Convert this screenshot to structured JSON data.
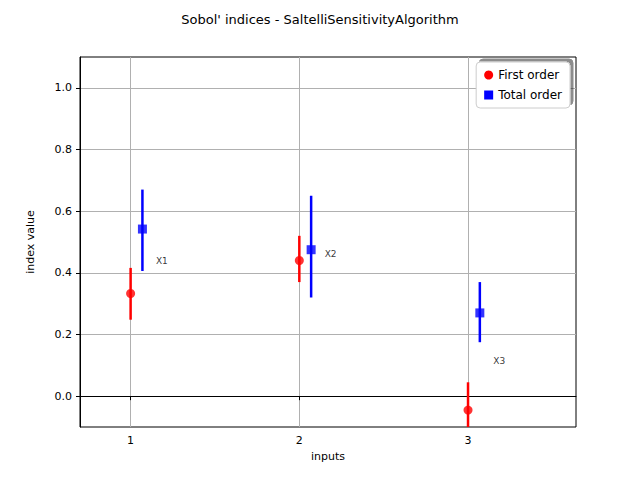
{
  "chart_data": {
    "type": "scatter",
    "title": "Sobol' indices - SaltelliSensitivityAlgorithm",
    "x_label": "inputs",
    "y_label": "index value",
    "xlim": [
      0.7,
      3.64
    ],
    "ylim": [
      -0.1,
      1.1
    ],
    "xticks": [
      1,
      2,
      3
    ],
    "yticks": [
      {
        "value": 0,
        "label": "0.0"
      },
      0.2,
      0.4,
      0.6,
      0.8,
      {
        "value": 1,
        "label": "1.0"
      }
    ],
    "grid": true,
    "legend": "upper right",
    "series": [
      {
        "name": "First order",
        "color": "#ff0000",
        "marker": "circle",
        "x": [
          1,
          2,
          3
        ],
        "values": [
          0.333,
          0.44,
          -0.045
        ],
        "lower": [
          0.248,
          0.37,
          -0.14
        ],
        "upper": [
          0.416,
          0.52,
          0.045
        ]
      },
      {
        "name": "Total order",
        "color": "#0000ff",
        "marker": "square",
        "x": [
          1.07,
          2.07,
          3.07
        ],
        "values": [
          0.542,
          0.475,
          0.27
        ],
        "lower": [
          0.406,
          0.32,
          0.175
        ],
        "upper": [
          0.67,
          0.65,
          0.37
        ]
      }
    ],
    "annotations": [
      {
        "text": "X1",
        "x": 1.15,
        "y": 0.44
      },
      {
        "text": "X2",
        "x": 2.15,
        "y": 0.46
      },
      {
        "text": "X3",
        "x": 3.15,
        "y": 0.115
      }
    ]
  }
}
